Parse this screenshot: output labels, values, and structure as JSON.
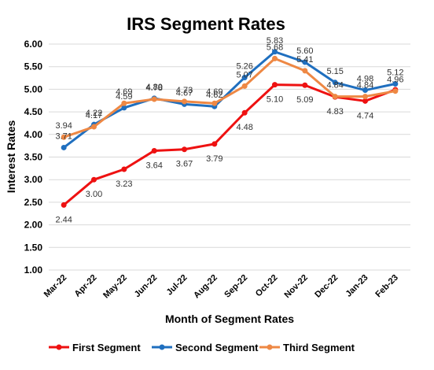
{
  "chart_data": {
    "type": "line",
    "title": "IRS Segment Rates",
    "xlabel": "Month of Segment Rates",
    "ylabel": "Interest Rates",
    "ylim": [
      1.0,
      6.0
    ],
    "yticks": [
      "1.00",
      "1.50",
      "2.00",
      "2.50",
      "3.00",
      "3.50",
      "4.00",
      "4.50",
      "5.00",
      "5.50",
      "6.00"
    ],
    "grid": "horizontal",
    "legend_position": "bottom",
    "categories": [
      "Mar-22",
      "Apr-22",
      "May-22",
      "Jun-22",
      "Jul-22",
      "Aug-22",
      "Sep-22",
      "Oct-22",
      "Nov-22",
      "Dec-22",
      "Jan-23",
      "Feb-23"
    ],
    "series": [
      {
        "name": "First Segment",
        "color": "#ee1111",
        "values": [
          2.44,
          3.0,
          3.23,
          3.64,
          3.67,
          3.79,
          4.48,
          5.1,
          5.09,
          4.83,
          4.74,
          4.99
        ],
        "labels": [
          "2.44",
          "3.00",
          "3.23",
          "3.64",
          "3.67",
          "3.79",
          "4.48",
          "5.10",
          "5.09",
          "4.83",
          "4.74",
          ""
        ]
      },
      {
        "name": "Second Segment",
        "color": "#1f6fbf",
        "values": [
          3.71,
          4.22,
          4.59,
          4.8,
          4.67,
          4.62,
          5.26,
          5.83,
          5.6,
          5.15,
          4.98,
          5.12
        ],
        "labels": [
          "3.71",
          "4.22",
          "4.59",
          "4.80",
          "4.67",
          "4.62",
          "5.26",
          "5.83",
          "5.60",
          "5.15",
          "4.98",
          "5.12"
        ]
      },
      {
        "name": "Third Segment",
        "color": "#ee8844",
        "values": [
          3.94,
          4.17,
          4.69,
          4.78,
          4.73,
          4.69,
          5.07,
          5.68,
          5.41,
          4.84,
          4.84,
          4.96
        ],
        "labels": [
          "3.94",
          "4.17",
          "4.69",
          "4.78",
          "4.73",
          "4.69",
          "5.07",
          "5.68",
          "5.41",
          "4.84",
          "4.84",
          "4.96"
        ]
      }
    ]
  }
}
